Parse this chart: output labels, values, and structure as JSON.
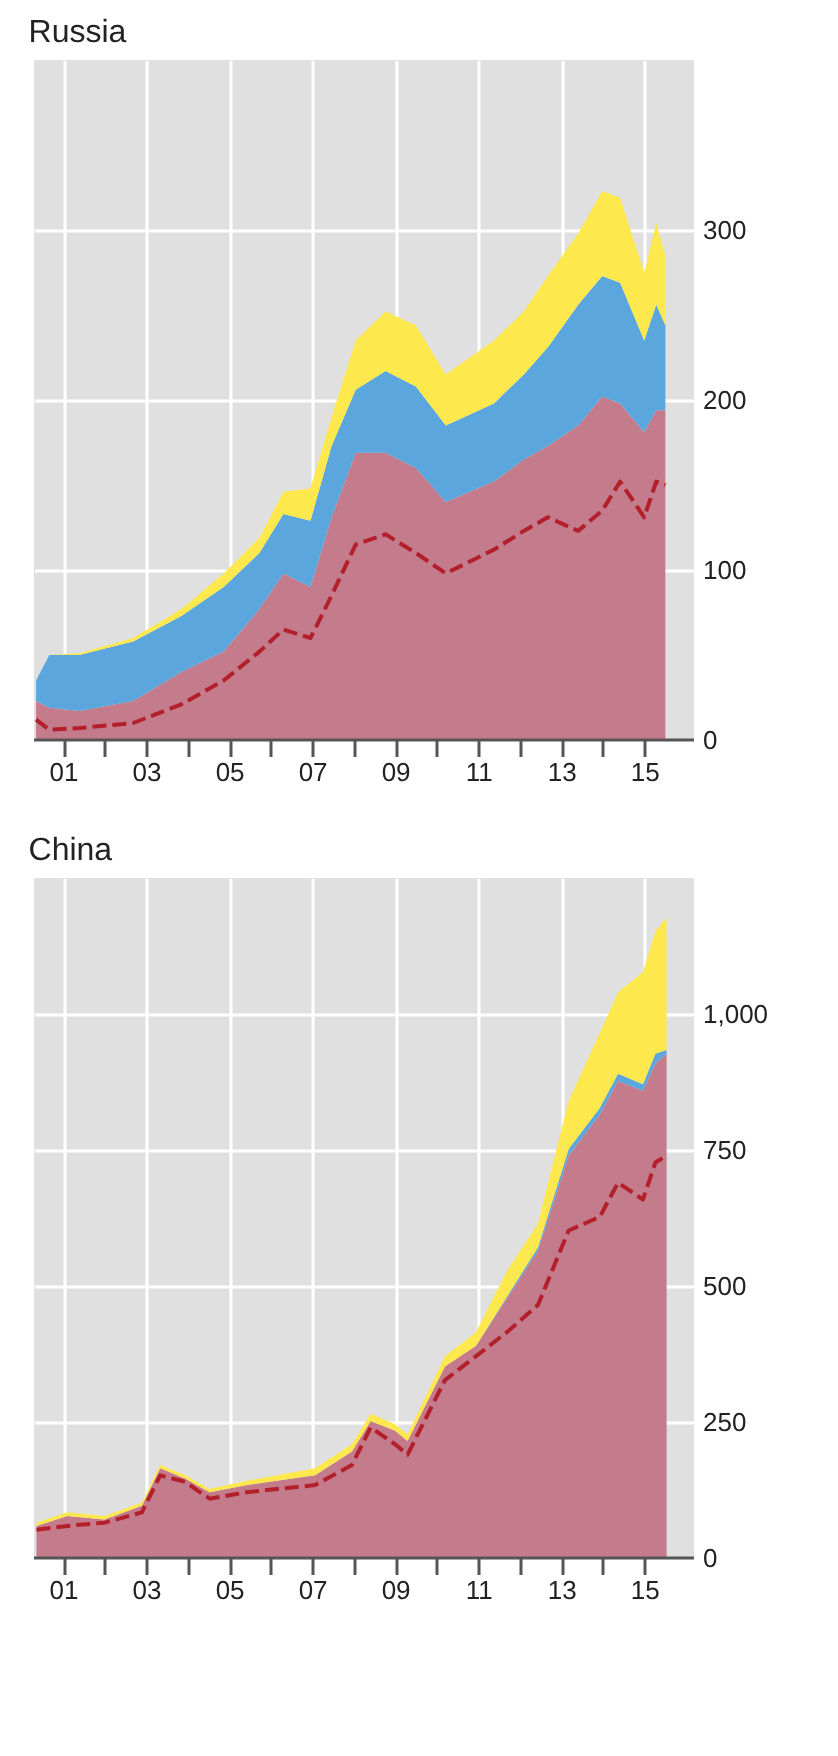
{
  "chart_data": [
    {
      "type": "area",
      "title": "Russia",
      "stacked": true,
      "grid": true,
      "x": [
        2000.35,
        2000.67,
        2001.39,
        2002.69,
        2003.85,
        2004.87,
        2005.73,
        2006.31,
        2006.96,
        2007.47,
        2008.05,
        2008.77,
        2009.5,
        2010.22,
        2011.38,
        2012.1,
        2012.68,
        2013.41,
        2013.99,
        2014.42,
        2015.0,
        2015.29,
        2015.51
      ],
      "series": [
        {
          "color": "#c47b8c",
          "values": [
            23,
            19,
            17,
            23,
            40,
            52,
            77,
            98,
            90,
            131,
            169,
            169,
            160,
            140,
            152,
            165,
            173,
            185,
            202,
            198,
            181,
            194,
            194
          ]
        },
        {
          "color": "#5ba6dd",
          "values": [
            12,
            31,
            33,
            35,
            33,
            38,
            33,
            35,
            39,
            42,
            37,
            48,
            48,
            45,
            46,
            50,
            58,
            71,
            71,
            71,
            54,
            62,
            50
          ]
        },
        {
          "color": "#fde84e",
          "values": [
            0,
            0,
            1,
            2,
            4,
            8,
            9,
            13,
            19,
            17,
            29,
            35,
            36,
            30,
            37,
            37,
            42,
            42,
            50,
            50,
            40,
            48,
            41
          ]
        },
        {
          "type": "line",
          "line_style": "dashed",
          "color": "#b3202c",
          "values": [
            12,
            6,
            7,
            10,
            21,
            35,
            52,
            65,
            60,
            85,
            115,
            121,
            110,
            98,
            112,
            123,
            131,
            123,
            135,
            152,
            131,
            152,
            150
          ]
        }
      ],
      "xlim": [
        2000.3,
        2016.2
      ],
      "ylim": [
        0,
        400
      ],
      "xticks": [
        {
          "value": 2001,
          "label": "01"
        },
        {
          "value": 2002,
          "label": null
        },
        {
          "value": 2003,
          "label": "03"
        },
        {
          "value": 2004,
          "label": null
        },
        {
          "value": 2005,
          "label": "05"
        },
        {
          "value": 2006,
          "label": null
        },
        {
          "value": 2007,
          "label": "07"
        },
        {
          "value": 2008,
          "label": null
        },
        {
          "value": 2009,
          "label": "09"
        },
        {
          "value": 2010,
          "label": null
        },
        {
          "value": 2011,
          "label": "11"
        },
        {
          "value": 2012,
          "label": null
        },
        {
          "value": 2013,
          "label": "13"
        },
        {
          "value": 2014,
          "label": null
        },
        {
          "value": 2015,
          "label": "15"
        }
      ],
      "yticks": [
        0,
        100,
        200,
        300
      ]
    },
    {
      "type": "area",
      "title": "China",
      "stacked": true,
      "grid": true,
      "x": [
        2000.36,
        2001.1,
        2002.0,
        2002.9,
        2003.34,
        2003.94,
        2004.53,
        2005.43,
        2007.07,
        2007.96,
        2008.41,
        2009.0,
        2009.3,
        2010.2,
        2010.95,
        2011.69,
        2012.44,
        2013.18,
        2013.93,
        2014.37,
        2014.97,
        2015.27,
        2015.54
      ],
      "series": [
        {
          "color": "#c47b8c",
          "values": [
            59,
            77,
            71,
            96,
            165,
            146,
            121,
            134,
            152,
            196,
            252,
            234,
            215,
            352,
            390,
            477,
            565,
            740,
            815,
            877,
            859,
            909,
            927
          ]
        },
        {
          "color": "#5ba6dd",
          "values": [
            0,
            0,
            0,
            0,
            0,
            0,
            0,
            0,
            0,
            0,
            0,
            0,
            0,
            0,
            0,
            3,
            6,
            12,
            12,
            13,
            12,
            18,
            7
          ]
        },
        {
          "color": "#fde84e",
          "values": [
            6,
            7,
            6,
            6,
            6,
            6,
            6,
            8,
            13,
            13,
            13,
            12,
            12,
            19,
            25,
            47,
            44,
            88,
            138,
            150,
            206,
            225,
            243
          ]
        },
        {
          "type": "line",
          "line_style": "dashed",
          "color": "#b3202c",
          "values": [
            52,
            59,
            65,
            84,
            152,
            140,
            109,
            121,
            134,
            171,
            240,
            209,
            190,
            327,
            371,
            415,
            465,
            602,
            627,
            690,
            659,
            727,
            740
          ]
        }
      ],
      "xlim": [
        2000.3,
        2016.2
      ],
      "ylim": [
        0,
        1250
      ],
      "xticks": [
        {
          "value": 2001,
          "label": "01"
        },
        {
          "value": 2002,
          "label": null
        },
        {
          "value": 2003,
          "label": "03"
        },
        {
          "value": 2004,
          "label": null
        },
        {
          "value": 2005,
          "label": "05"
        },
        {
          "value": 2006,
          "label": null
        },
        {
          "value": 2007,
          "label": "07"
        },
        {
          "value": 2008,
          "label": null
        },
        {
          "value": 2009,
          "label": "09"
        },
        {
          "value": 2010,
          "label": null
        },
        {
          "value": 2011,
          "label": "11"
        },
        {
          "value": 2012,
          "label": null
        },
        {
          "value": 2013,
          "label": "13"
        },
        {
          "value": 2014,
          "label": null
        },
        {
          "value": 2015,
          "label": "15"
        }
      ],
      "yticks": [
        0,
        {
          "value": 250,
          "label": "250"
        },
        {
          "value": 500,
          "label": "500"
        },
        {
          "value": 750,
          "label": "750"
        },
        {
          "value": 1000,
          "label": "1,000"
        }
      ]
    }
  ]
}
